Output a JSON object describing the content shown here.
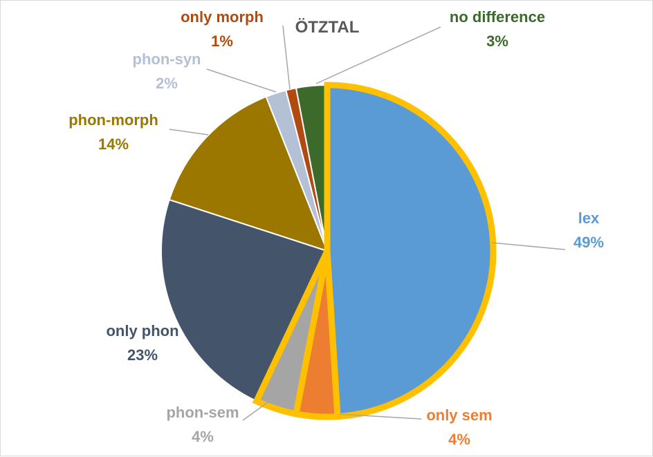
{
  "chart_data": {
    "type": "pie",
    "title": "ÖTZTAL",
    "slices": [
      {
        "label": "lex",
        "value": 49,
        "display": "49%",
        "color": "#5b9bd5",
        "highlighted": true
      },
      {
        "label": "only sem",
        "value": 4,
        "display": "4%",
        "color": "#ed7d31",
        "highlighted": true
      },
      {
        "label": "phon-sem",
        "value": 4,
        "display": "4%",
        "color": "#a5a5a5",
        "highlighted": true
      },
      {
        "label": "only phon",
        "value": 23,
        "display": "23%",
        "color": "#44546a",
        "highlighted": false
      },
      {
        "label": "phon-morph",
        "value": 14,
        "display": "14%",
        "color": "#9c7700",
        "highlighted": false
      },
      {
        "label": "phon-syn",
        "value": 2,
        "display": "2%",
        "color": "#b4c0d6",
        "highlighted": false
      },
      {
        "label": "only morph",
        "value": 1,
        "display": "1%",
        "color": "#b04a10",
        "highlighted": false
      },
      {
        "label": "no difference",
        "value": 3,
        "display": "3%",
        "color": "#3b6a2a",
        "highlighted": false
      }
    ],
    "label_colors": {
      "lex": "#5b9bd5",
      "only sem": "#ed7d31",
      "phon-sem": "#a5a5a5",
      "only phon": "#44546a",
      "phon-morph": "#9c7700",
      "phon-syn": "#b4c0d6",
      "only morph": "#b04a10",
      "no difference": "#3b6a2a"
    },
    "highlight_color": "#ffc000"
  }
}
